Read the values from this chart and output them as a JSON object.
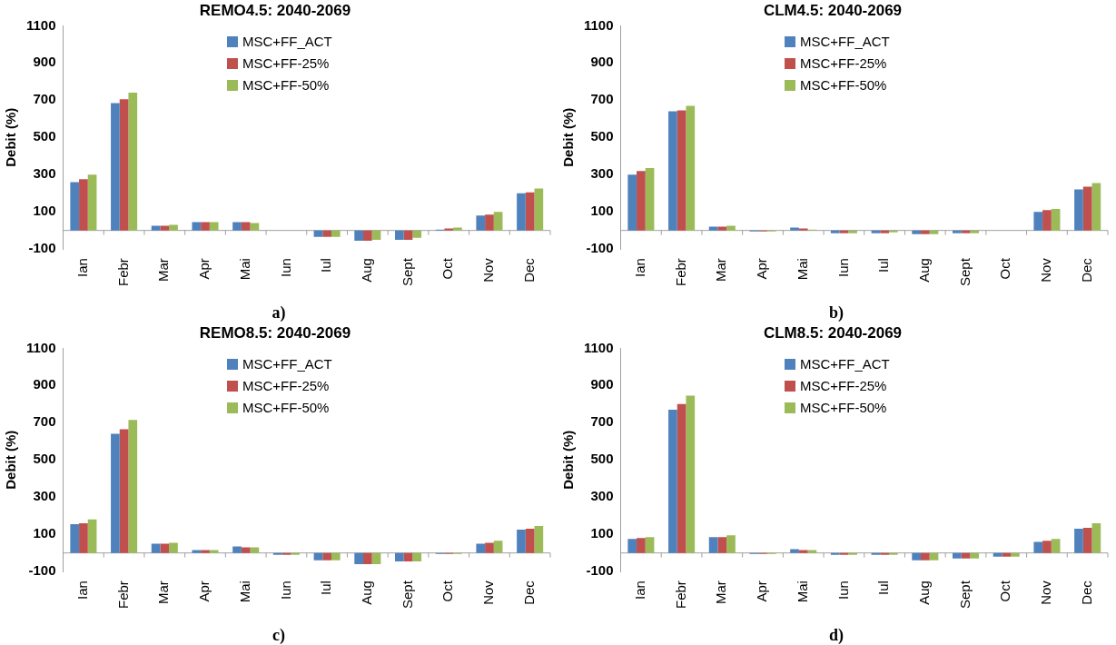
{
  "chart_data": [
    {
      "type": "bar",
      "title": "REMO4.5: 2040-2069",
      "ylabel": "Debit (%)",
      "categories": [
        "Ian",
        "Febr",
        "Mar",
        "Apr",
        "Mai",
        "Iun",
        "Iul",
        "Aug",
        "Sept",
        "Oct",
        "Nov",
        "Dec"
      ],
      "ylim": [
        -100,
        1100
      ],
      "yticks": [
        -100,
        100,
        300,
        500,
        700,
        900,
        1100
      ],
      "legend": "top",
      "annotations": [
        "a)"
      ],
      "series": [
        {
          "name": "MSC+FF_ACT",
          "color": "#4f81bd",
          "values": [
            260,
            685,
            25,
            45,
            45,
            0,
            -35,
            -55,
            -50,
            5,
            80,
            200
          ]
        },
        {
          "name": "MSC+FF-25%",
          "color": "#c0504d",
          "values": [
            275,
            705,
            25,
            45,
            45,
            0,
            -35,
            -55,
            -50,
            10,
            85,
            205
          ]
        },
        {
          "name": "MSC+FF-50%",
          "color": "#9bbb59",
          "values": [
            300,
            740,
            30,
            45,
            40,
            0,
            -35,
            -50,
            -40,
            15,
            100,
            225
          ]
        }
      ]
    },
    {
      "type": "bar",
      "title": "CLM4.5: 2040-2069",
      "ylabel": "Debit (%)",
      "categories": [
        "Ian",
        "Febr",
        "Mar",
        "Apr",
        "Mai",
        "Iun",
        "Iul",
        "Aug",
        "Sept",
        "Oct",
        "Nov",
        "Dec"
      ],
      "ylim": [
        -100,
        1100
      ],
      "yticks": [
        -100,
        100,
        300,
        500,
        700,
        900,
        1100
      ],
      "legend": "top",
      "annotations": [
        "b)"
      ],
      "series": [
        {
          "name": "MSC+FF_ACT",
          "color": "#4f81bd",
          "values": [
            300,
            640,
            20,
            -5,
            15,
            -15,
            -15,
            -20,
            -15,
            0,
            100,
            220
          ]
        },
        {
          "name": "MSC+FF-25%",
          "color": "#c0504d",
          "values": [
            320,
            645,
            20,
            -5,
            10,
            -15,
            -15,
            -20,
            -15,
            0,
            110,
            235
          ]
        },
        {
          "name": "MSC+FF-50%",
          "color": "#9bbb59",
          "values": [
            335,
            670,
            25,
            -5,
            5,
            -15,
            -10,
            -20,
            -15,
            0,
            115,
            255
          ]
        }
      ]
    },
    {
      "type": "bar",
      "title": "REMO8.5: 2040-2069",
      "ylabel": "Debit (%)",
      "categories": [
        "Ian",
        "Febr",
        "Mar",
        "Apr",
        "Mai",
        "Iun",
        "Iul",
        "Aug",
        "Sept",
        "Oct",
        "Nov",
        "Dec"
      ],
      "ylim": [
        -100,
        1100
      ],
      "yticks": [
        -100,
        100,
        300,
        500,
        700,
        900,
        1100
      ],
      "legend": "top",
      "annotations": [
        "c)"
      ],
      "series": [
        {
          "name": "MSC+FF_ACT",
          "color": "#4f81bd",
          "values": [
            155,
            640,
            50,
            15,
            35,
            -10,
            -40,
            -60,
            -45,
            -5,
            50,
            125
          ]
        },
        {
          "name": "MSC+FF-25%",
          "color": "#c0504d",
          "values": [
            160,
            665,
            50,
            15,
            30,
            -10,
            -40,
            -60,
            -45,
            -5,
            55,
            130
          ]
        },
        {
          "name": "MSC+FF-50%",
          "color": "#9bbb59",
          "values": [
            180,
            715,
            55,
            15,
            30,
            -10,
            -40,
            -60,
            -45,
            -5,
            65,
            145
          ]
        }
      ]
    },
    {
      "type": "bar",
      "title": "CLM8.5: 2040-2069",
      "ylabel": "Debit (%)",
      "categories": [
        "Ian",
        "Febr",
        "Mar",
        "Apr",
        "Mai",
        "Iun",
        "Iul",
        "Aug",
        "Sept",
        "Oct",
        "Nov",
        "Dec"
      ],
      "ylim": [
        -100,
        1100
      ],
      "yticks": [
        -100,
        100,
        300,
        500,
        700,
        900,
        1100
      ],
      "legend": "top",
      "annotations": [
        "d)"
      ],
      "series": [
        {
          "name": "MSC+FF_ACT",
          "color": "#4f81bd",
          "values": [
            75,
            770,
            85,
            -5,
            20,
            -10,
            -10,
            -40,
            -30,
            -20,
            60,
            130
          ]
        },
        {
          "name": "MSC+FF-25%",
          "color": "#c0504d",
          "values": [
            80,
            800,
            85,
            -5,
            15,
            -10,
            -10,
            -40,
            -30,
            -20,
            65,
            135
          ]
        },
        {
          "name": "MSC+FF-50%",
          "color": "#9bbb59",
          "values": [
            85,
            845,
            95,
            -5,
            15,
            -10,
            -10,
            -40,
            -30,
            -20,
            75,
            160
          ]
        }
      ]
    }
  ]
}
